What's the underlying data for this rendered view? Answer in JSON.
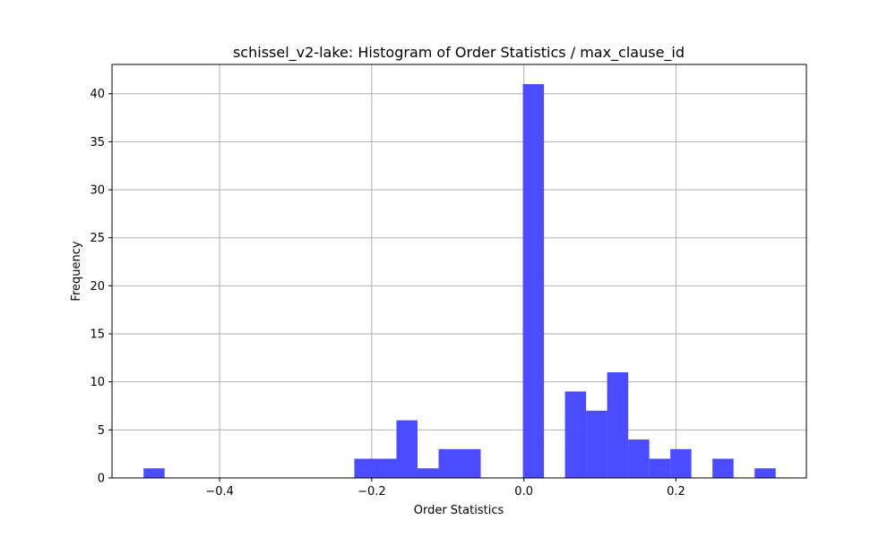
{
  "chart_data": {
    "type": "bar",
    "title": "schissel_v2-lake: Histogram of Order Statistics / max_clause_id",
    "xlabel": "Order Statistics",
    "ylabel": "Frequency",
    "bar_color": "#4b4bff",
    "grid": true,
    "xlim": [
      -0.5415,
      0.3715
    ],
    "ylim": [
      0,
      43.05
    ],
    "xticks": [
      {
        "value": -0.4,
        "label": "−0.4"
      },
      {
        "value": -0.2,
        "label": "−0.2"
      },
      {
        "value": 0.0,
        "label": "0.0"
      },
      {
        "value": 0.2,
        "label": "0.2"
      }
    ],
    "yticks": [
      {
        "value": 0,
        "label": "0"
      },
      {
        "value": 5,
        "label": "5"
      },
      {
        "value": 10,
        "label": "10"
      },
      {
        "value": 15,
        "label": "15"
      },
      {
        "value": 20,
        "label": "20"
      },
      {
        "value": 25,
        "label": "25"
      },
      {
        "value": 30,
        "label": "30"
      },
      {
        "value": 35,
        "label": "35"
      },
      {
        "value": 40,
        "label": "40"
      }
    ],
    "bins": [
      {
        "x0": -0.5,
        "x1": -0.4723,
        "count": 1
      },
      {
        "x0": -0.2229,
        "x1": -0.1952,
        "count": 2
      },
      {
        "x0": -0.1952,
        "x1": -0.1675,
        "count": 2
      },
      {
        "x0": -0.1675,
        "x1": -0.1398,
        "count": 6
      },
      {
        "x0": -0.1398,
        "x1": -0.1121,
        "count": 1
      },
      {
        "x0": -0.1121,
        "x1": -0.0844,
        "count": 3
      },
      {
        "x0": -0.0844,
        "x1": -0.0567,
        "count": 3
      },
      {
        "x0": -0.0013,
        "x1": 0.0264,
        "count": 41
      },
      {
        "x0": 0.0541,
        "x1": 0.0818,
        "count": 9
      },
      {
        "x0": 0.0818,
        "x1": 0.1095,
        "count": 7
      },
      {
        "x0": 0.1095,
        "x1": 0.1372,
        "count": 11
      },
      {
        "x0": 0.1372,
        "x1": 0.1649,
        "count": 4
      },
      {
        "x0": 0.1649,
        "x1": 0.1926,
        "count": 2
      },
      {
        "x0": 0.1926,
        "x1": 0.2203,
        "count": 3
      },
      {
        "x0": 0.248,
        "x1": 0.2757,
        "count": 2
      },
      {
        "x0": 0.3034,
        "x1": 0.3311,
        "count": 1
      }
    ]
  }
}
